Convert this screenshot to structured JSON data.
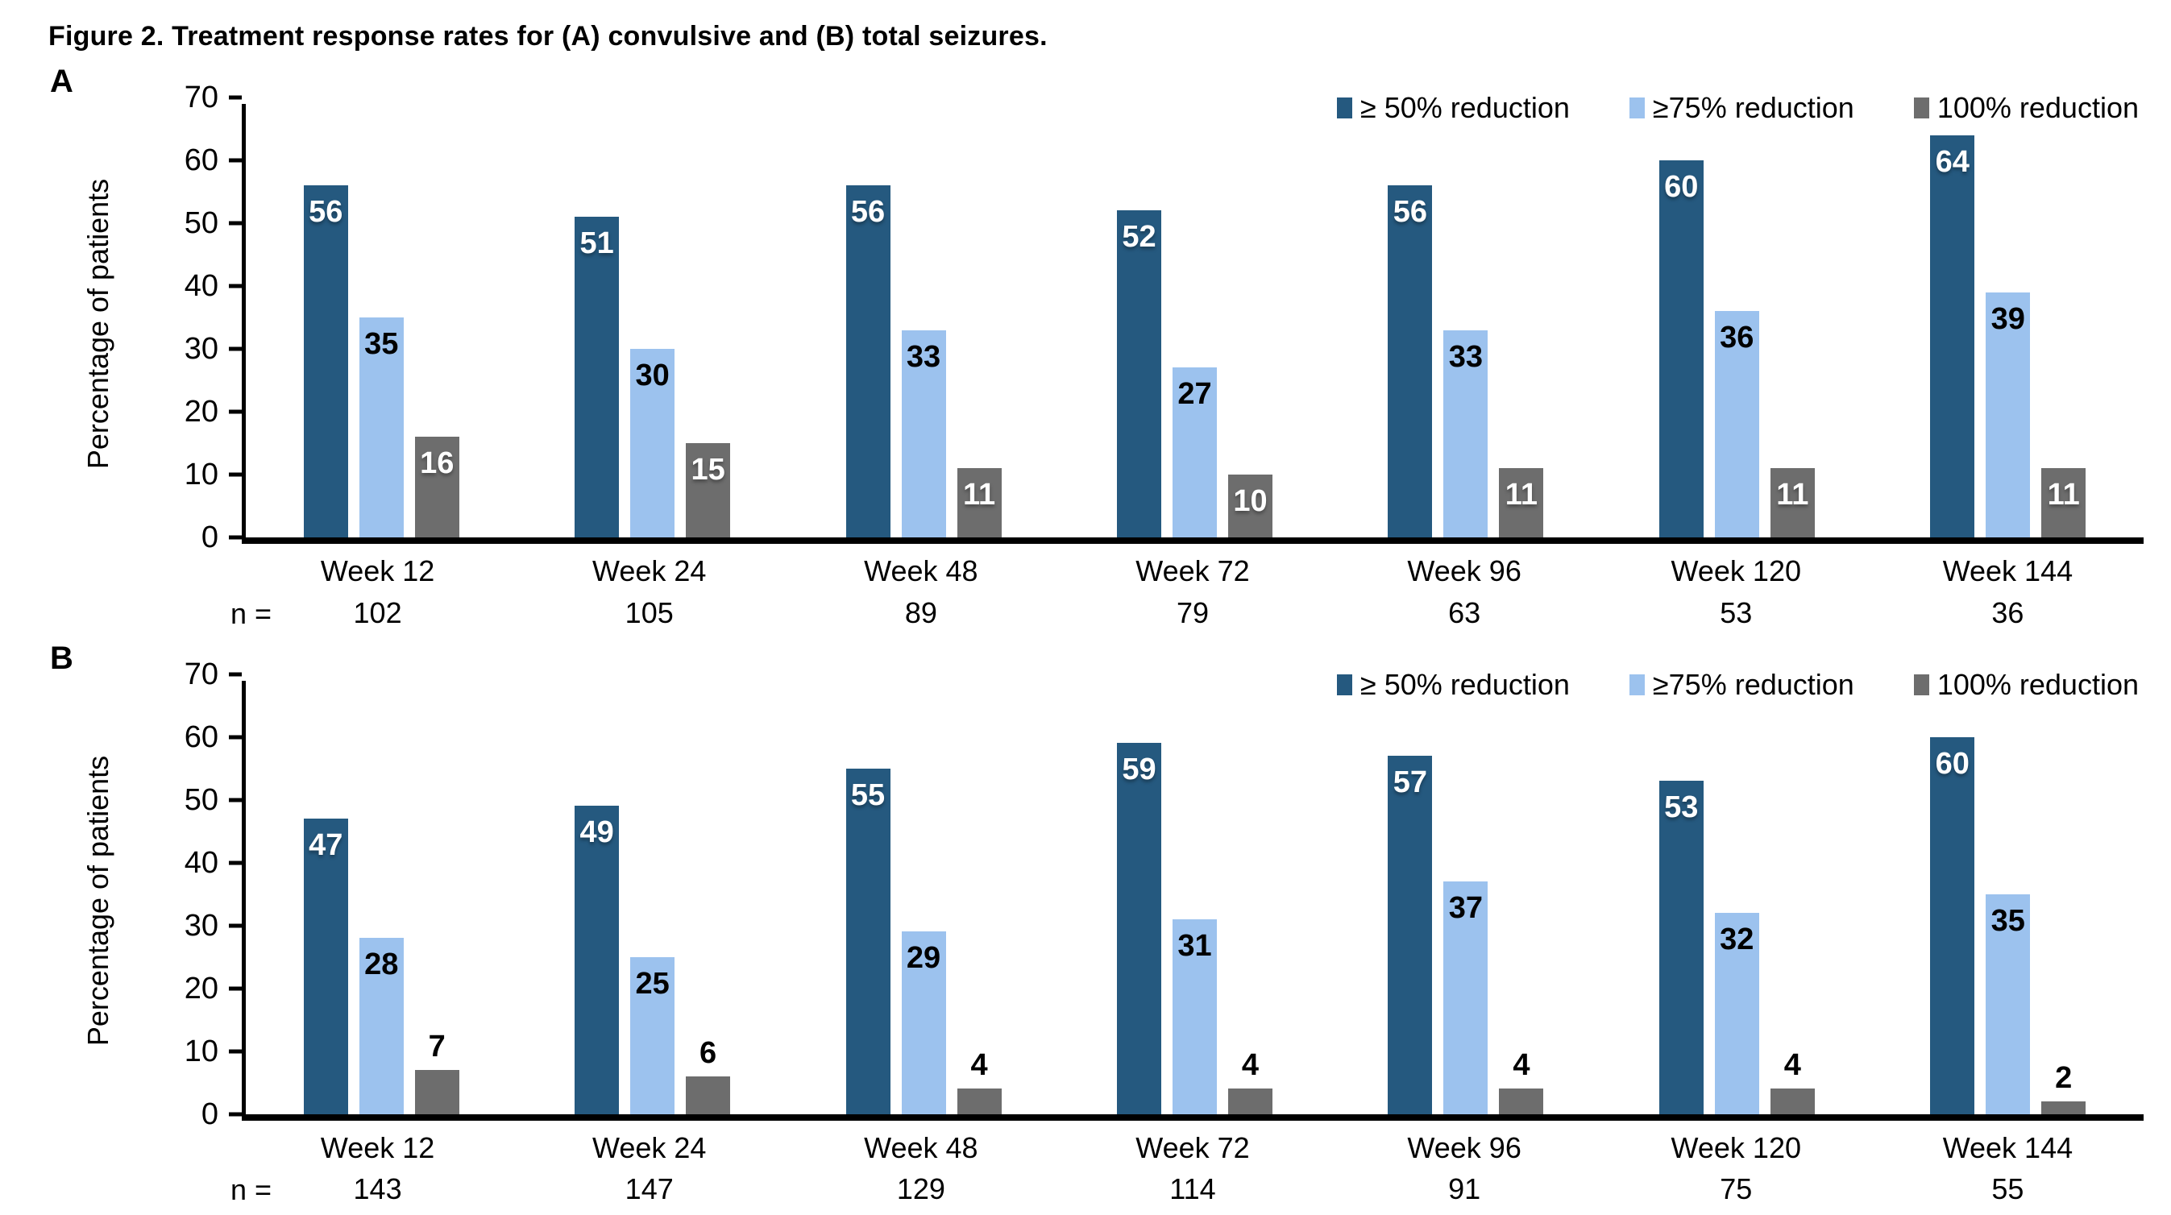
{
  "figure": {
    "title": "Figure 2. Treatment response rates for (A) convulsive and (B) total seizures.",
    "n_label": "n =",
    "series_colors": [
      "#25597F",
      "#9CC2EE",
      "#6D6D6D"
    ],
    "axis_color": "#000000",
    "bar_label_inside_dark": "#FFFFFF",
    "bar_label_inside_light": "#000000"
  },
  "chart_data": [
    {
      "type": "bar",
      "panel": "A",
      "description": "Treatment response rates for convulsive seizures",
      "ylabel": "Percentage of patients",
      "ylim": [
        0,
        70
      ],
      "ytick_step": 10,
      "grid": false,
      "legend_position": "top-right",
      "categories": [
        "Week 12",
        "Week 24",
        "Week 48",
        "Week 72",
        "Week 96",
        "Week 120",
        "Week 144"
      ],
      "series": [
        {
          "name": "≥ 50% reduction",
          "values": [
            56,
            51,
            56,
            52,
            56,
            60,
            64
          ]
        },
        {
          "name": "≥75% reduction",
          "values": [
            35,
            30,
            33,
            27,
            33,
            36,
            39
          ]
        },
        {
          "name": "100% reduction",
          "values": [
            16,
            15,
            11,
            10,
            11,
            11,
            11
          ]
        }
      ],
      "n_values": [
        102,
        105,
        89,
        79,
        63,
        53,
        36
      ]
    },
    {
      "type": "bar",
      "panel": "B",
      "description": "Treatment response rates for total seizures",
      "ylabel": "Percentage of patients",
      "ylim": [
        0,
        70
      ],
      "ytick_step": 10,
      "grid": false,
      "legend_position": "top-right",
      "categories": [
        "Week 12",
        "Week 24",
        "Week 48",
        "Week 72",
        "Week 96",
        "Week 120",
        "Week 144"
      ],
      "series": [
        {
          "name": "≥ 50% reduction",
          "values": [
            47,
            49,
            55,
            59,
            57,
            53,
            60
          ]
        },
        {
          "name": "≥75% reduction",
          "values": [
            28,
            25,
            29,
            31,
            37,
            32,
            35
          ]
        },
        {
          "name": "100% reduction",
          "values": [
            7,
            6,
            4,
            4,
            4,
            4,
            2
          ]
        }
      ],
      "n_values": [
        143,
        147,
        129,
        114,
        91,
        75,
        55
      ]
    }
  ]
}
